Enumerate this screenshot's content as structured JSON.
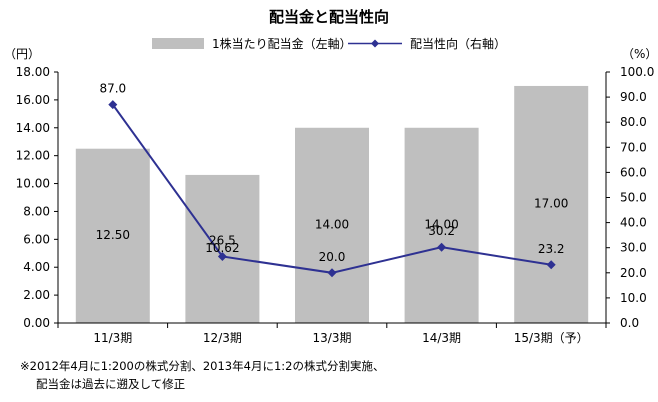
{
  "chart_data": {
    "type": "bar+line",
    "title": "配当金と配当性向",
    "categories": [
      "11/3期",
      "12/3期",
      "13/3期",
      "14/3期",
      "15/3期（予）"
    ],
    "series": [
      {
        "name": "1株当たり配当金（左軸）",
        "type": "bar",
        "axis": "left",
        "color": "#bfbfbf",
        "values": [
          12.5,
          10.62,
          14.0,
          14.0,
          17.0
        ],
        "labels": [
          "12.50",
          "10.62",
          "14.00",
          "14.00",
          "17.00"
        ]
      },
      {
        "name": "配当性向（右軸）",
        "type": "line",
        "axis": "right",
        "color": "#2e3192",
        "values": [
          87.0,
          26.5,
          20.0,
          30.2,
          23.2
        ],
        "labels": [
          "87.0",
          "26.5",
          "20.0",
          "30.2",
          "23.2"
        ]
      }
    ],
    "y_left": {
      "unit": "（円）",
      "ylim": [
        0,
        18
      ],
      "ticks": [
        "0.00",
        "2.00",
        "4.00",
        "6.00",
        "8.00",
        "10.00",
        "12.00",
        "14.00",
        "16.00",
        "18.00"
      ]
    },
    "y_right": {
      "unit": "（%）",
      "ylim": [
        0,
        100
      ],
      "ticks": [
        "0.0",
        "10.0",
        "20.0",
        "30.0",
        "40.0",
        "50.0",
        "60.0",
        "70.0",
        "80.0",
        "90.0",
        "100.0"
      ]
    },
    "grid": false,
    "legend": "top"
  },
  "footnote": {
    "line1": "※2012年4月に1:200の株式分割、2013年4月に1:2の株式分割実施、",
    "line2": "配当金は過去に遡及して修正"
  }
}
